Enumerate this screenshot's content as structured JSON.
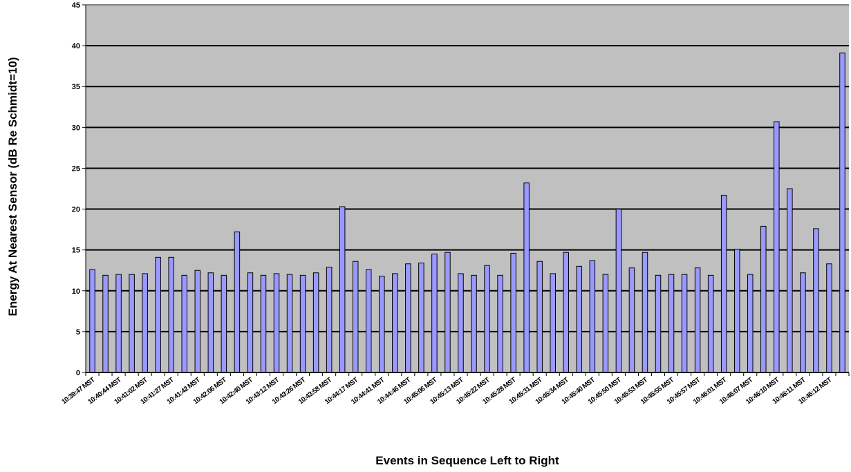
{
  "chart_data": {
    "type": "bar",
    "title": "",
    "xlabel": "Events in Sequence Left to Right",
    "ylabel": "Energy At Nearest Sensor (dB Re Schmidt=10)",
    "ylim": [
      0,
      45
    ],
    "yticks": [
      0,
      5,
      10,
      15,
      20,
      25,
      30,
      35,
      40,
      45
    ],
    "grid": true,
    "legend": "none",
    "colors": {
      "plot_background": "#c0c0c0",
      "bar_fill": "#9999ff",
      "bar_stroke": "#000000",
      "gridline": "#000000"
    },
    "tick_labels": [
      "10:39:47 MST",
      "10:40:44 MST",
      "10:41:02 MST",
      "10:41:27 MST",
      "10:41:42 MST",
      "10:42:06 MST",
      "10:42:40 MST",
      "10:43:12 MST",
      "10:43:26 MST",
      "10:43:58 MST",
      "10:44:17 MST",
      "10:44:41 MST",
      "10:44:46 MST",
      "10:45:06 MST",
      "10:45:13 MST",
      "10:45:22 MST",
      "10:45:28 MST",
      "10:45:31 MST",
      "10:45:34 MST",
      "10:45:40 MST",
      "10:45:50 MST",
      "10:45:53 MST",
      "10:45:55 MST",
      "10:45:57 MST",
      "10:46:01 MST",
      "10:46:07 MST",
      "10:46:10 MST",
      "10:46:11 MST",
      "10:46:12 MST"
    ],
    "values": [
      12.6,
      11.9,
      12.0,
      12.0,
      12.1,
      14.1,
      14.1,
      11.9,
      12.5,
      12.2,
      11.9,
      17.2,
      12.2,
      11.9,
      12.1,
      12.0,
      11.9,
      12.2,
      12.9,
      20.3,
      13.6,
      12.6,
      11.8,
      12.1,
      13.3,
      13.4,
      14.5,
      14.7,
      12.1,
      11.9,
      13.1,
      11.9,
      14.6,
      23.2,
      13.6,
      12.1,
      14.7,
      13.0,
      13.7,
      12.0,
      20.0,
      12.8,
      14.7,
      11.9,
      12.0,
      12.0,
      12.8,
      11.9,
      21.7,
      15.1,
      12.0,
      17.9,
      30.7,
      22.5,
      12.2,
      17.6,
      13.3,
      39.1
    ]
  }
}
